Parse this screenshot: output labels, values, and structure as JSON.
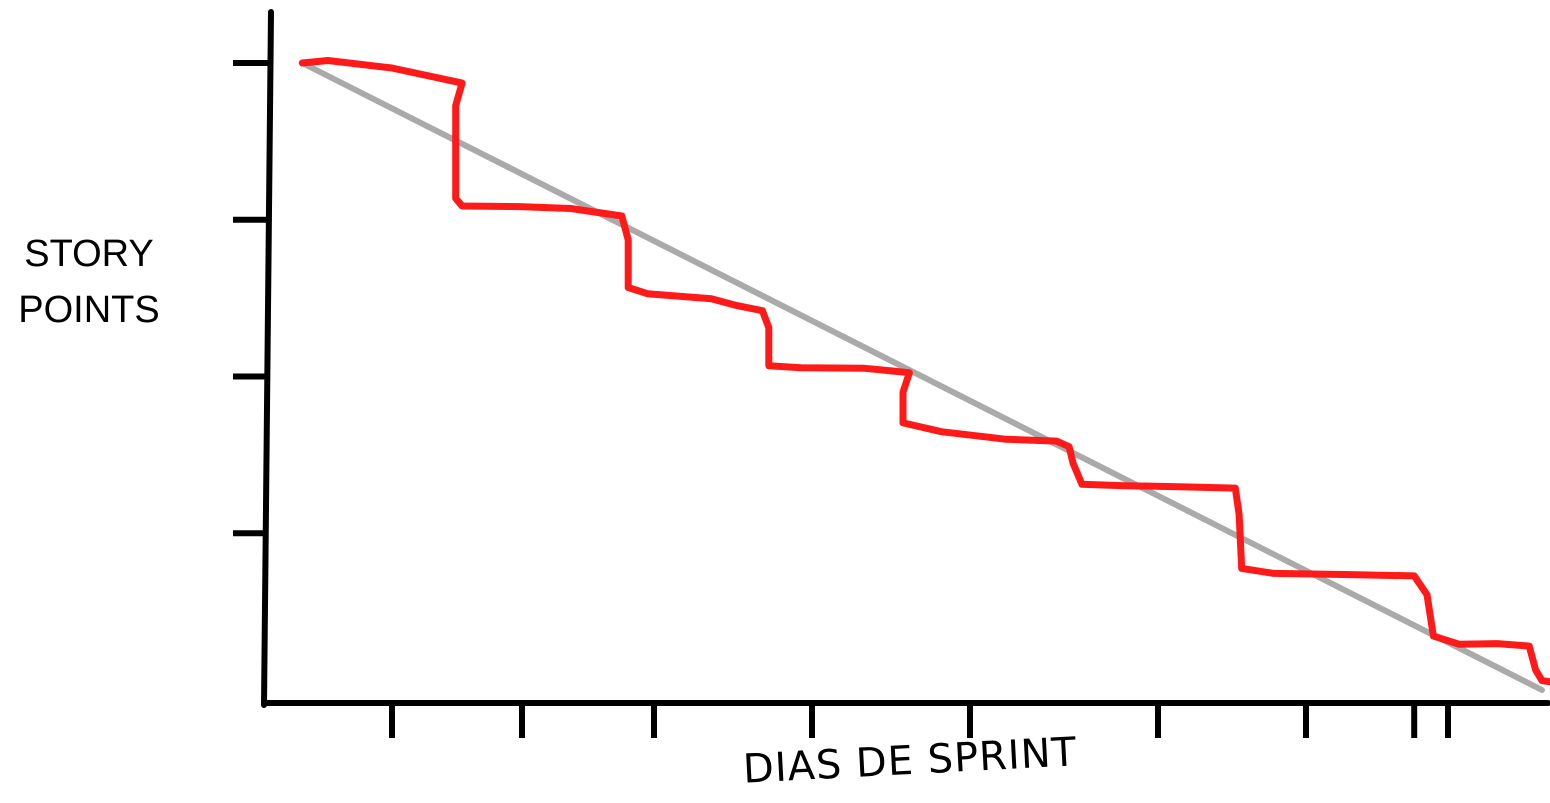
{
  "chart_data": {
    "type": "line",
    "title": "",
    "ylabel": "STORY POINTS",
    "ylabel_lines": [
      "STORY",
      "POINTS"
    ],
    "xlabel": "DIAS DE SPRINT",
    "xlim": [
      0,
      10
    ],
    "ylim": [
      0,
      100
    ],
    "grid": false,
    "legend": "none",
    "x_ticks": [
      1,
      2,
      3,
      4,
      5,
      6,
      7,
      8,
      9
    ],
    "y_ticks": [
      25,
      50,
      75,
      100
    ],
    "series": [
      {
        "role": "ideal",
        "color": "#aaaaaa",
        "points": [
          [
            0.3,
            100
          ],
          [
            10,
            0
          ]
        ]
      },
      {
        "role": "actual",
        "color": "#ff1a1a",
        "points": [
          [
            0.3,
            100
          ],
          [
            0.5,
            100.4
          ],
          [
            1.0,
            99.2
          ],
          [
            1.55,
            96.8
          ],
          [
            1.5,
            93.2
          ],
          [
            1.5,
            78.4
          ],
          [
            1.55,
            77.2
          ],
          [
            2.0,
            77.1
          ],
          [
            2.4,
            76.8
          ],
          [
            2.8,
            75.6
          ],
          [
            2.85,
            71.8
          ],
          [
            2.85,
            64.2
          ],
          [
            3.0,
            63.2
          ],
          [
            3.5,
            62.4
          ],
          [
            3.7,
            61.3
          ],
          [
            3.9,
            60.5
          ],
          [
            3.95,
            57.8
          ],
          [
            3.95,
            51.7
          ],
          [
            4.2,
            51.4
          ],
          [
            4.7,
            51.3
          ],
          [
            5.05,
            50.6
          ],
          [
            5.0,
            47.5
          ],
          [
            5.0,
            42.6
          ],
          [
            5.3,
            41.2
          ],
          [
            5.8,
            40.0
          ],
          [
            6.2,
            39.7
          ],
          [
            6.3,
            38.8
          ],
          [
            6.33,
            36.2
          ],
          [
            6.4,
            32.8
          ],
          [
            6.7,
            32.6
          ],
          [
            7.2,
            32.4
          ],
          [
            7.6,
            32.2
          ],
          [
            7.63,
            28.0
          ],
          [
            7.65,
            19.4
          ],
          [
            7.9,
            18.6
          ],
          [
            8.5,
            18.4
          ],
          [
            9.0,
            18.2
          ],
          [
            9.1,
            15.2
          ],
          [
            9.15,
            8.6
          ],
          [
            9.35,
            7.3
          ],
          [
            9.65,
            7.4
          ],
          [
            9.9,
            7.0
          ],
          [
            9.95,
            3.2
          ],
          [
            10.0,
            1.5
          ],
          [
            10.1,
            1.2
          ]
        ]
      }
    ]
  }
}
